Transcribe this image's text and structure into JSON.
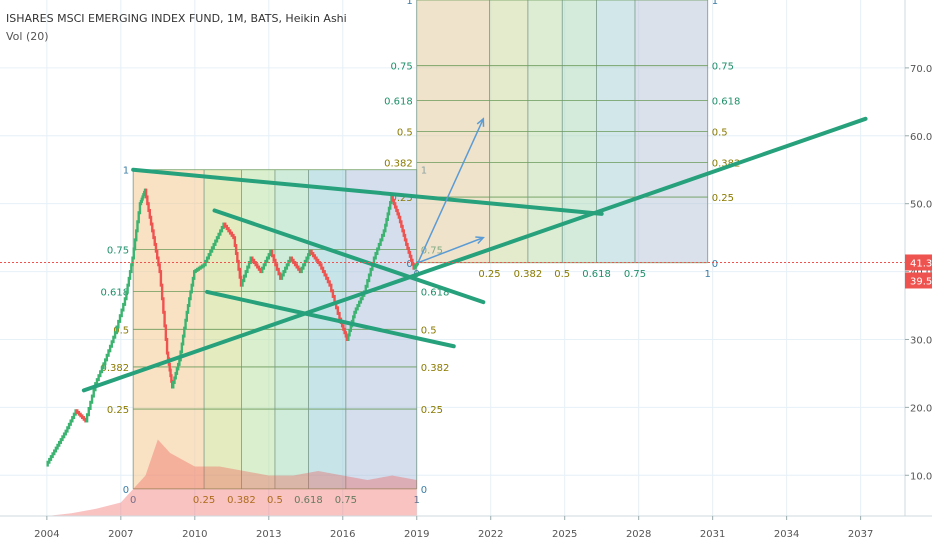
{
  "header": {
    "title": "ISHARES MSCI EMERGING INDEX FUND, 1M, BATS, Heikin Ashi",
    "volume_label": "Vol (20)"
  },
  "colors": {
    "up": "#3cb371",
    "down": "#ef5350",
    "trendline": "#26a17b",
    "arrow": "#5b9bd5",
    "price_line": "#ef5350",
    "grid": "#e6f0f7",
    "fib_text_gold": "#8a7a00",
    "fib_text_green": "#1f8f6a",
    "fib_text_teal": "#3a7ca5"
  },
  "chart_data": {
    "type": "candlestick",
    "title": "ISHARES MSCI EMERGING INDEX FUND, 1M, BATS, Heikin Ashi",
    "x_ticks": [
      "2004",
      "2007",
      "2010",
      "2013",
      "2016",
      "2019",
      "2022",
      "2025",
      "2028",
      "2031",
      "2034",
      "2037"
    ],
    "y_ticks": [
      "10.00",
      "20.00",
      "30.00",
      "40.00",
      "50.00",
      "60.00",
      "70.00"
    ],
    "x_range": [
      2002.1,
      2038.8
    ],
    "y_range": [
      4,
      80
    ],
    "grid": true,
    "price_labels": [
      {
        "value": 41.34,
        "label": "41.34",
        "color": "#ef5350"
      },
      {
        "value": 39.54,
        "label": "39.54",
        "color": "#ef5350"
      }
    ],
    "price_path": [
      [
        2004.0,
        11.5
      ],
      [
        2004.4,
        14.0
      ],
      [
        2004.8,
        16.5
      ],
      [
        2005.2,
        19.5
      ],
      [
        2005.6,
        18.0
      ],
      [
        2006.0,
        23.5
      ],
      [
        2006.4,
        27.0
      ],
      [
        2006.8,
        31.0
      ],
      [
        2007.2,
        36.0
      ],
      [
        2007.5,
        42.0
      ],
      [
        2007.8,
        50.0
      ],
      [
        2008.0,
        52.0
      ],
      [
        2008.3,
        46.0
      ],
      [
        2008.6,
        40.0
      ],
      [
        2008.9,
        28.0
      ],
      [
        2009.1,
        23.0
      ],
      [
        2009.4,
        27.0
      ],
      [
        2009.7,
        34.0
      ],
      [
        2010.0,
        40.0
      ],
      [
        2010.4,
        41.0
      ],
      [
        2010.8,
        44.0
      ],
      [
        2011.2,
        47.0
      ],
      [
        2011.6,
        45.0
      ],
      [
        2011.9,
        38.0
      ],
      [
        2012.3,
        42.0
      ],
      [
        2012.7,
        40.0
      ],
      [
        2013.1,
        43.0
      ],
      [
        2013.5,
        39.0
      ],
      [
        2013.9,
        42.0
      ],
      [
        2014.3,
        40.0
      ],
      [
        2014.7,
        43.0
      ],
      [
        2015.1,
        41.0
      ],
      [
        2015.5,
        38.0
      ],
      [
        2015.9,
        33.0
      ],
      [
        2016.2,
        30.0
      ],
      [
        2016.5,
        34.0
      ],
      [
        2016.9,
        37.0
      ],
      [
        2017.3,
        42.0
      ],
      [
        2017.7,
        46.0
      ],
      [
        2018.0,
        51.0
      ],
      [
        2018.3,
        48.0
      ],
      [
        2018.6,
        44.0
      ],
      [
        2018.9,
        40.5
      ],
      [
        2019.05,
        41.3
      ]
    ],
    "volume_path": [
      [
        2004.0,
        0.0
      ],
      [
        2005.0,
        0.03
      ],
      [
        2006.0,
        0.08
      ],
      [
        2007.0,
        0.15
      ],
      [
        2008.0,
        0.45
      ],
      [
        2008.5,
        0.85
      ],
      [
        2009.0,
        0.7
      ],
      [
        2010.0,
        0.55
      ],
      [
        2011.0,
        0.55
      ],
      [
        2012.0,
        0.5
      ],
      [
        2013.0,
        0.45
      ],
      [
        2014.0,
        0.45
      ],
      [
        2015.0,
        0.5
      ],
      [
        2016.0,
        0.45
      ],
      [
        2017.0,
        0.4
      ],
      [
        2018.0,
        0.45
      ],
      [
        2019.0,
        0.4
      ]
    ],
    "trendlines": [
      {
        "from": [
          2007.5,
          55.0
        ],
        "to": [
          2026.5,
          48.5
        ]
      },
      {
        "from": [
          2005.5,
          22.5
        ],
        "to": [
          2037.2,
          62.5
        ]
      },
      {
        "from": [
          2010.8,
          49.0
        ],
        "to": [
          2021.7,
          35.5
        ]
      },
      {
        "from": [
          2010.5,
          37.0
        ],
        "to": [
          2020.5,
          29.0
        ]
      }
    ],
    "projection_arrows": [
      {
        "from": [
          2019.05,
          41.3
        ],
        "to": [
          2021.7,
          62.5
        ]
      },
      {
        "from": [
          2019.05,
          41.3
        ],
        "to": [
          2021.7,
          45.0
        ]
      }
    ],
    "fib_boxes": [
      {
        "name": "fib-time-zone-2007-2019",
        "x": [
          2007.5,
          2019.0
        ],
        "y": [
          8.0,
          55.0
        ],
        "levels": [
          "0",
          "0.25",
          "0.382",
          "0.5",
          "0.618",
          "0.75",
          "1"
        ],
        "level_fractions": [
          0,
          0.25,
          0.382,
          0.5,
          0.618,
          0.75,
          1
        ],
        "fills": [
          "#f3c68a",
          "#c7d77f",
          "#b6df9c",
          "#9fd8b4",
          "#8fc9d4",
          "#a9bddc"
        ]
      },
      {
        "name": "fib-time-zone-2019-2031",
        "x": [
          2019.0,
          2030.8
        ],
        "y": [
          41.3,
          80.0
        ],
        "levels": [
          "0",
          "0.25",
          "0.382",
          "0.5",
          "0.618",
          "0.75",
          "1"
        ],
        "level_fractions": [
          0,
          0.25,
          0.382,
          0.5,
          0.618,
          0.75,
          1
        ],
        "fills": [
          "#e2c89a",
          "#c9d699",
          "#bcdca8",
          "#a9d8b9",
          "#a6cfd3",
          "#b8c3d8"
        ]
      }
    ]
  }
}
